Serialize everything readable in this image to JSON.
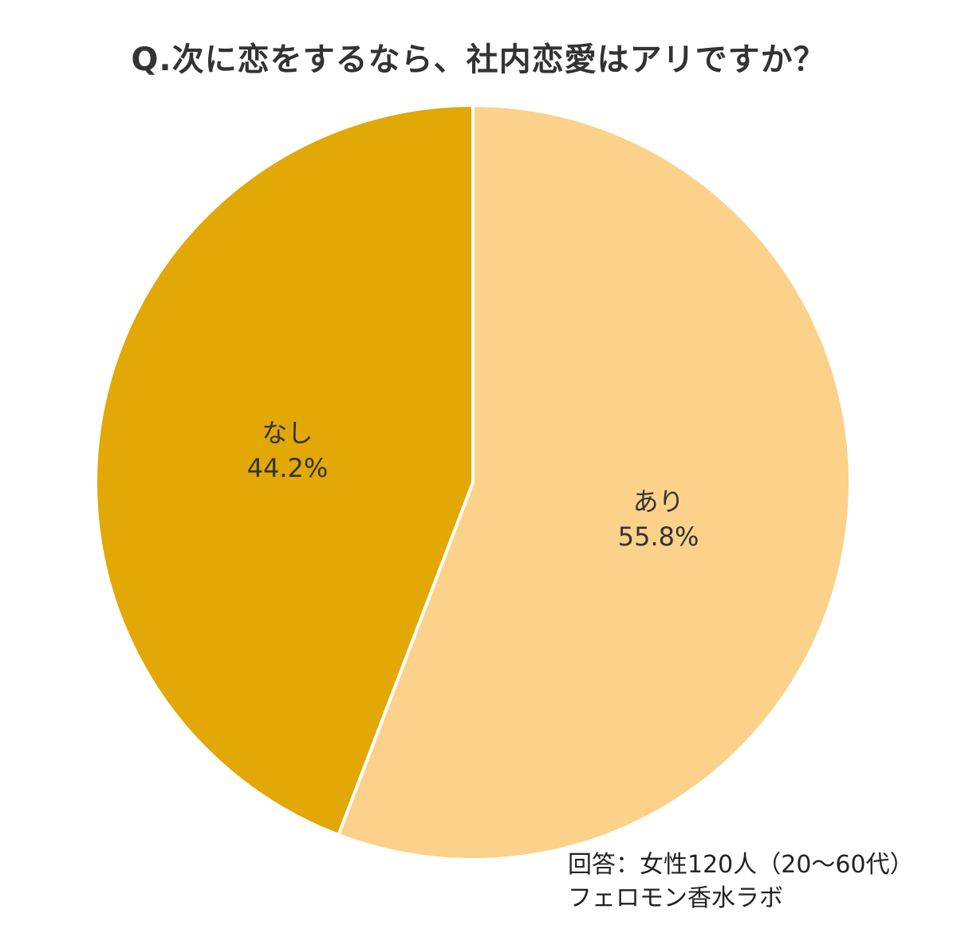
{
  "title": "Q.次に恋をするなら、社内恋愛はアリですか？",
  "chart_data": {
    "type": "pie",
    "title": "Q.次に恋をするなら、社内恋愛はアリですか？",
    "slices": [
      {
        "label": "あり",
        "value": 55.8,
        "value_label": "55.8%",
        "color": "#FCD18A"
      },
      {
        "label": "なし",
        "value": 44.2,
        "value_label": "44.2%",
        "color": "#E1A806"
      }
    ],
    "start": "12 o'clock",
    "direction": "clockwise"
  },
  "footer": {
    "respondents": "回答：女性120人（20～60代）",
    "source": "フェロモン香水ラボ"
  }
}
